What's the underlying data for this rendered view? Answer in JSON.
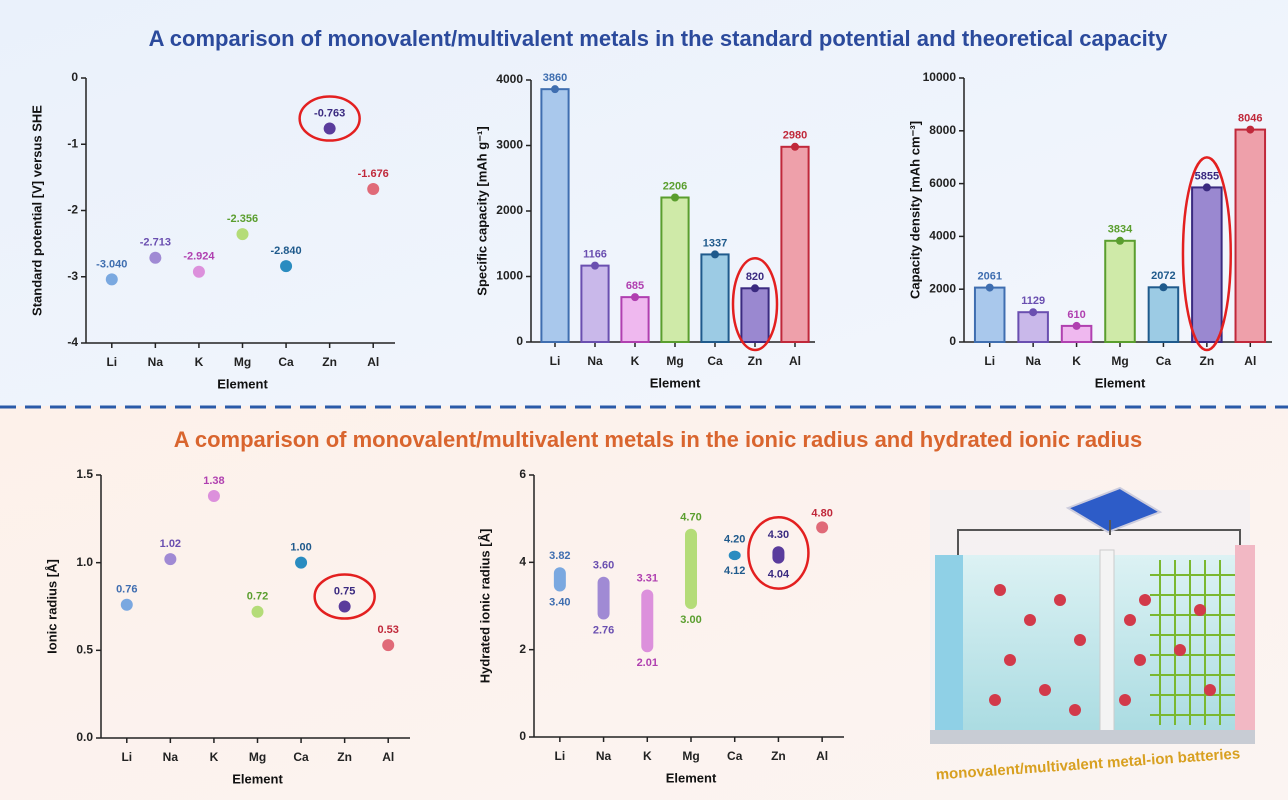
{
  "sections": [
    {
      "title": "A comparison of monovalent/multivalent metals in the standard potential and theoretical capacity"
    },
    {
      "title": "A comparison of monovalent/multivalent metals in the ionic radius and hydrated ionic radius"
    }
  ],
  "illustration": {
    "caption": "monovalent/multivalent metal-ion batteries"
  },
  "chart_data": [
    {
      "type": "scatter",
      "categories": [
        "Li",
        "Na",
        "K",
        "Mg",
        "Ca",
        "Zn",
        "Al"
      ],
      "values": [
        -3.04,
        -2.713,
        -2.924,
        -2.356,
        -2.84,
        -0.763,
        -1.676
      ],
      "value_labels": [
        "-3.040",
        "-2.713",
        "-2.924",
        "-2.356",
        "-2.840",
        "-0.763",
        "-1.676"
      ],
      "ylim": [
        -4,
        0
      ],
      "yticks": [
        -4,
        -3,
        -2,
        -1,
        0
      ],
      "ylabel": "Standard potential [V] versus SHE",
      "xlabel": "Element",
      "highlight": 5,
      "colors": [
        "#7aa8e0",
        "#a08ad4",
        "#dc90dc",
        "#b4dc78",
        "#2a8cc0",
        "#5a3c9c",
        "#e06a78"
      ],
      "label_colors": [
        "#3f6eb0",
        "#6a4fb0",
        "#b040b0",
        "#5a9e2e",
        "#1f5a8c",
        "#3a2a80",
        "#c0283a"
      ]
    },
    {
      "type": "bar",
      "categories": [
        "Li",
        "Na",
        "K",
        "Mg",
        "Ca",
        "Zn",
        "Al"
      ],
      "values": [
        3860,
        1166,
        685,
        2206,
        1337,
        820,
        2980
      ],
      "ylim": [
        0,
        4000
      ],
      "yticks": [
        0,
        1000,
        2000,
        3000,
        4000
      ],
      "ylabel": "Specific capacity [mAh g⁻¹]",
      "xlabel": "Element",
      "highlight": 5,
      "colors": [
        "#a9c8ec",
        "#c9b8ea",
        "#efb8ef",
        "#cfeaa8",
        "#9ccbe4",
        "#9a88d0",
        "#eea0aa"
      ],
      "label_colors": [
        "#3f6eb0",
        "#6a4fb0",
        "#b040b0",
        "#5a9e2e",
        "#1f5a8c",
        "#3a2a80",
        "#c0283a"
      ]
    },
    {
      "type": "bar",
      "categories": [
        "Li",
        "Na",
        "K",
        "Mg",
        "Ca",
        "Zn",
        "Al"
      ],
      "values": [
        2061,
        1129,
        610,
        3834,
        2072,
        5855,
        8046
      ],
      "ylim": [
        0,
        10000
      ],
      "yticks": [
        0,
        2000,
        4000,
        6000,
        8000,
        10000
      ],
      "ylabel": "Capacity density [mAh cm⁻³]",
      "xlabel": "Element",
      "highlight": 5,
      "colors": [
        "#a9c8ec",
        "#c9b8ea",
        "#efb8ef",
        "#cfeaa8",
        "#9ccbe4",
        "#9a88d0",
        "#eea0aa"
      ],
      "label_colors": [
        "#3f6eb0",
        "#6a4fb0",
        "#b040b0",
        "#5a9e2e",
        "#1f5a8c",
        "#3a2a80",
        "#c0283a"
      ]
    },
    {
      "type": "scatter",
      "categories": [
        "Li",
        "Na",
        "K",
        "Mg",
        "Ca",
        "Zn",
        "Al"
      ],
      "values": [
        0.76,
        1.02,
        1.38,
        0.72,
        1.0,
        0.75,
        0.53
      ],
      "value_labels": [
        "0.76",
        "1.02",
        "1.38",
        "0.72",
        "1.00",
        "0.75",
        "0.53"
      ],
      "ylim": [
        0,
        1.5
      ],
      "yticks": [
        {
          "value": 0,
          "label": "0.0"
        },
        0.5,
        {
          "value": 1,
          "label": "1.0"
        },
        1.5
      ],
      "ylabel": "Ionic radius [Å]",
      "xlabel": "Element",
      "highlight": 5,
      "colors": [
        "#7aa8e0",
        "#a08ad4",
        "#dc90dc",
        "#b4dc78",
        "#2a8cc0",
        "#5a3c9c",
        "#e06a78"
      ],
      "label_colors": [
        "#3f6eb0",
        "#6a4fb0",
        "#b040b0",
        "#5a9e2e",
        "#1f5a8c",
        "#3a2a80",
        "#c0283a"
      ]
    },
    {
      "type": "range",
      "categories": [
        "Li",
        "Na",
        "K",
        "Mg",
        "Ca",
        "Zn",
        "Al"
      ],
      "high": [
        3.82,
        3.6,
        3.31,
        4.7,
        4.2,
        4.3,
        4.8
      ],
      "high_labels": [
        "3.82",
        "3.60",
        "3.31",
        "4.70",
        "4.20",
        "4.30",
        "4.80"
      ],
      "low": [
        3.4,
        2.76,
        2.01,
        3.0,
        4.12,
        4.04,
        null
      ],
      "low_labels": [
        "3.40",
        "2.76",
        "2.01",
        "3.00",
        "4.12",
        "4.04",
        null
      ],
      "ylim": [
        0,
        6
      ],
      "yticks": [
        0,
        2,
        4,
        6
      ],
      "ylabel": "Hydrated ionic radius [Å]",
      "xlabel": "Element",
      "highlight": 5,
      "colors": [
        "#7aa8e0",
        "#a08ad4",
        "#dc90dc",
        "#b4dc78",
        "#2a8cc0",
        "#5a3c9c",
        "#e06a78"
      ],
      "label_colors": [
        "#3f6eb0",
        "#6a4fb0",
        "#b040b0",
        "#5a9e2e",
        "#1f5a8c",
        "#3a2a80",
        "#c0283a"
      ]
    }
  ]
}
